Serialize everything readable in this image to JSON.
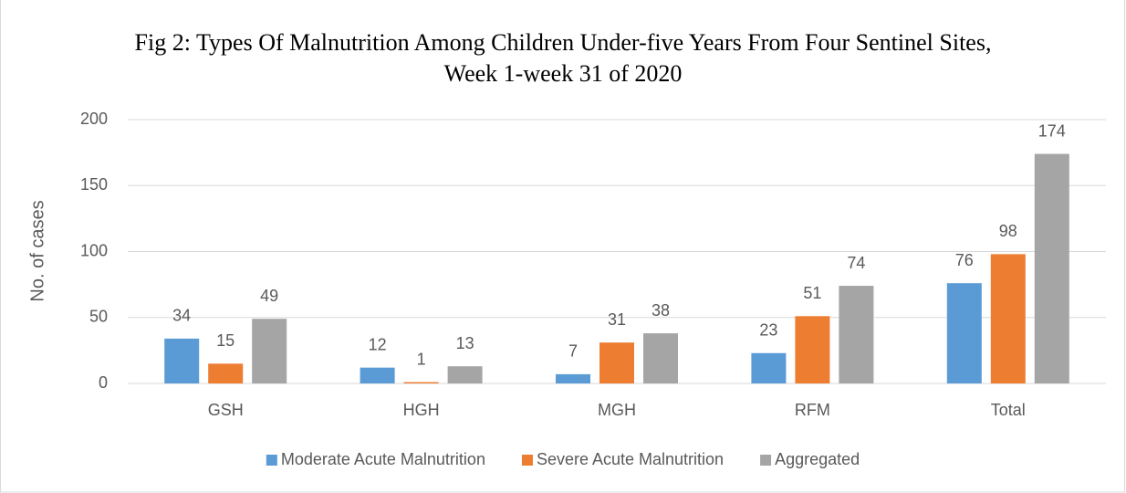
{
  "chart_data": {
    "type": "bar",
    "title": "Fig 2: Types Of Malnutrition Among Children Under-five Years From Four Sentinel Sites, Week 1-week 31 of 2020",
    "y_label": "No. of cases",
    "categories": [
      "GSH",
      "HGH",
      "MGH",
      "RFM",
      "Total"
    ],
    "series": [
      {
        "name": "Moderate Acute Malnutrition",
        "color": "#5b9bd5",
        "values": [
          34,
          12,
          7,
          23,
          76
        ]
      },
      {
        "name": "Severe Acute Malnutrition",
        "color": "#ed7d31",
        "values": [
          15,
          1,
          31,
          51,
          98
        ]
      },
      {
        "name": "Aggregated",
        "color": "#a5a5a5",
        "values": [
          49,
          13,
          38,
          74,
          174
        ]
      }
    ],
    "ylim": [
      0,
      200
    ],
    "yticks": [
      0,
      50,
      100,
      150,
      200
    ],
    "grid": true,
    "legend": "bottom"
  }
}
